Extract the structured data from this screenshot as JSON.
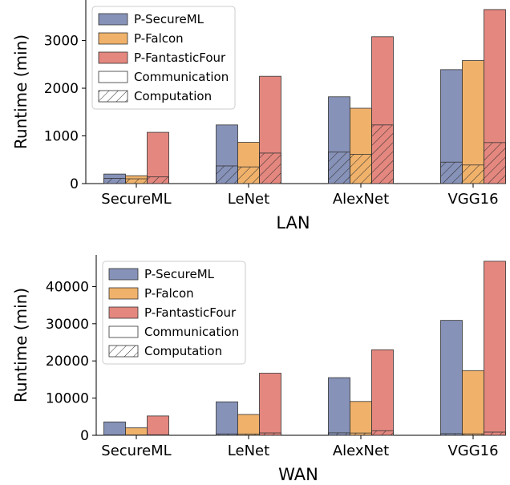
{
  "colors": {
    "P-SecureML": "#8792b8",
    "P-Falcon": "#f0b26b",
    "P-FantasticFour": "#e4877f",
    "edge": "#333333"
  },
  "chart_data": [
    {
      "type": "bar",
      "stacked_components": [
        "Computation",
        "Communication"
      ],
      "xlabel": "LAN",
      "ylabel": "Runtime (min)",
      "ylim": [
        0,
        3850
      ],
      "yticks": [
        0,
        1000,
        2000,
        3000
      ],
      "categories": [
        "SecureML",
        "LeNet",
        "AlexNet",
        "VGG16"
      ],
      "series": [
        {
          "name": "P-SecureML",
          "total": [
            200,
            1230,
            1820,
            2390
          ],
          "computation": [
            110,
            370,
            660,
            450
          ]
        },
        {
          "name": "P-Falcon",
          "total": [
            165,
            865,
            1580,
            2580
          ],
          "computation": [
            100,
            350,
            615,
            390
          ]
        },
        {
          "name": "P-FantasticFour",
          "total": [
            1075,
            2250,
            3080,
            3650
          ],
          "computation": [
            140,
            640,
            1230,
            860
          ]
        }
      ],
      "legend": {
        "placement": "top-left",
        "entries": [
          "P-SecureML",
          "P-Falcon",
          "P-FantasticFour",
          "Communication",
          "Computation"
        ]
      },
      "grid": false
    },
    {
      "type": "bar",
      "stacked_components": [
        "Computation",
        "Communication"
      ],
      "xlabel": "WAN",
      "ylabel": "Runtime (min)",
      "ylim": [
        0,
        48500
      ],
      "yticks": [
        0,
        10000,
        20000,
        30000,
        40000
      ],
      "categories": [
        "SecureML",
        "LeNet",
        "AlexNet",
        "VGG16"
      ],
      "series": [
        {
          "name": "P-SecureML",
          "total": [
            3600,
            9000,
            15500,
            30900
          ],
          "computation": [
            110,
            370,
            660,
            450
          ]
        },
        {
          "name": "P-Falcon",
          "total": [
            2000,
            5600,
            9100,
            17400
          ],
          "computation": [
            100,
            350,
            615,
            390
          ]
        },
        {
          "name": "P-FantasticFour",
          "total": [
            5200,
            16700,
            23000,
            46800
          ],
          "computation": [
            140,
            640,
            1230,
            860
          ]
        }
      ],
      "legend": {
        "placement": "top-left",
        "entries": [
          "P-SecureML",
          "P-Falcon",
          "P-FantasticFour",
          "Communication",
          "Computation"
        ]
      },
      "grid": false
    }
  ]
}
